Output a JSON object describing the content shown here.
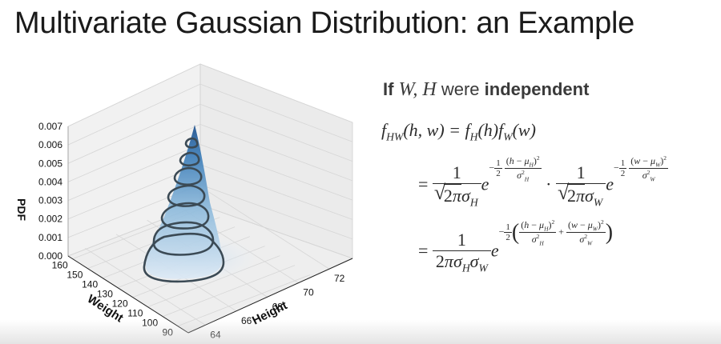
{
  "slide": {
    "title": "Multivariate Gaussian Distribution: an Example"
  },
  "statement": {
    "prefix": "If",
    "vars": "W, H",
    "middle": "were",
    "keyword": "independent"
  },
  "equations": {
    "line1_lhs": "f",
    "line1_lhs_sub": "HW",
    "line1_lhs_args": "(h, w) = ",
    "line1_rhs_f1": "f",
    "line1_rhs_f1_sub": "H",
    "line1_rhs_f1_args": "(h)",
    "line1_rhs_f2": "f",
    "line1_rhs_f2_sub": "W",
    "line1_rhs_f2_args": "(w)",
    "equals": "=",
    "one": "1",
    "e": "e",
    "dot": "·"
  },
  "chart_data": {
    "type": "surface3d",
    "zlabel": "PDF",
    "xlabel": "Weight",
    "ylabel": "Height",
    "z_ticks": [
      "0.000",
      "0.001",
      "0.002",
      "0.003",
      "0.004",
      "0.005",
      "0.006",
      "0.007"
    ],
    "weight_ticks": [
      "160",
      "150",
      "140",
      "130",
      "120",
      "110",
      "100",
      "90"
    ],
    "height_ticks": [
      "64",
      "66",
      "68",
      "70",
      "72"
    ],
    "zlim": [
      0.0,
      0.007
    ],
    "colormap": "Blues",
    "contour_color": "#3b4a55"
  }
}
